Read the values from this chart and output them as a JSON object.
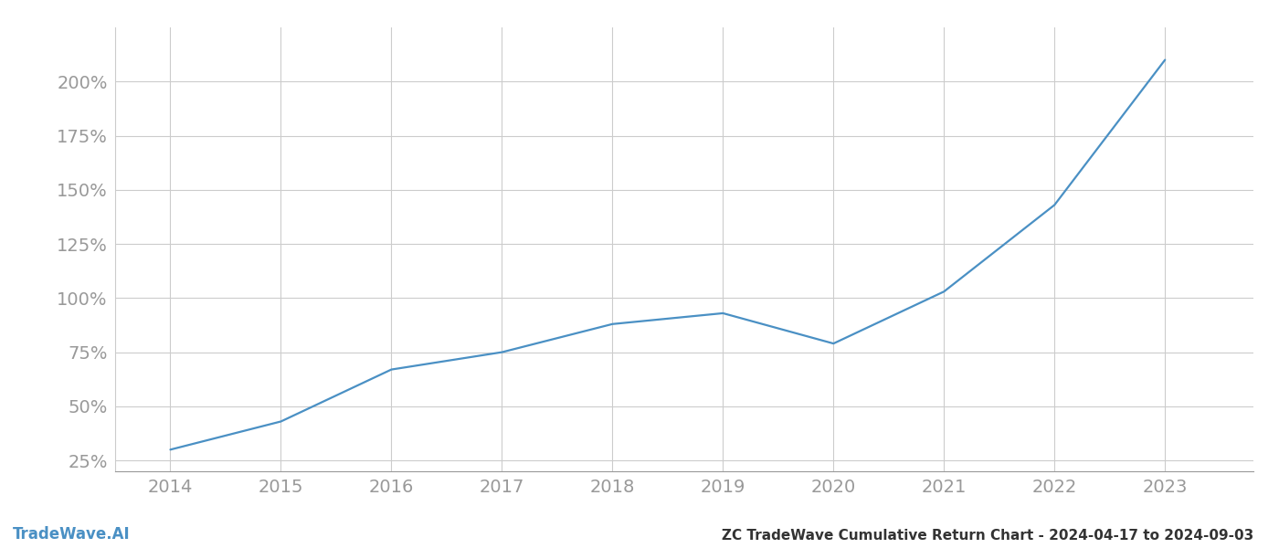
{
  "x_years": [
    2014,
    2015,
    2016,
    2017,
    2018,
    2019,
    2020,
    2021,
    2022,
    2023
  ],
  "y_values": [
    30,
    43,
    67,
    75,
    88,
    93,
    79,
    103,
    143,
    210
  ],
  "line_color": "#4a90c4",
  "line_width": 1.6,
  "title": "ZC TradeWave Cumulative Return Chart - 2024-04-17 to 2024-09-03",
  "watermark": "TradeWave.AI",
  "background_color": "#ffffff",
  "grid_color": "#cccccc",
  "tick_color": "#999999",
  "title_color": "#333333",
  "watermark_color": "#4a90c4",
  "xlim": [
    2013.5,
    2023.8
  ],
  "ylim": [
    20,
    225
  ],
  "yticks": [
    25,
    50,
    75,
    100,
    125,
    150,
    175,
    200
  ],
  "xticks": [
    2014,
    2015,
    2016,
    2017,
    2018,
    2019,
    2020,
    2021,
    2022,
    2023
  ],
  "title_fontsize": 11,
  "tick_fontsize": 14,
  "watermark_fontsize": 12
}
